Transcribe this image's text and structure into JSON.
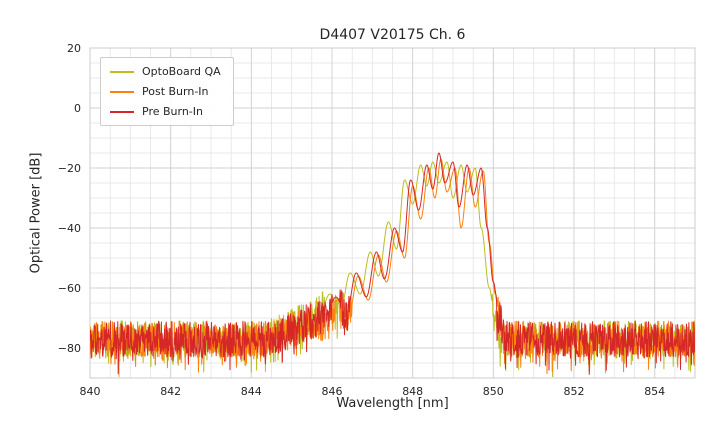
{
  "chart_data": {
    "type": "line",
    "title": "D4407 V20175 Ch. 6",
    "xlabel": "Wavelength [nm]",
    "ylabel": "Optical Power [dB]",
    "xlim": [
      840,
      855
    ],
    "ylim": [
      -90,
      20
    ],
    "xticks": [
      840,
      842,
      844,
      846,
      848,
      850,
      852,
      854
    ],
    "yticks": [
      20,
      0,
      -20,
      -40,
      -60,
      -80
    ],
    "grid": {
      "on": true,
      "minor_x_step": 0.5,
      "minor_y_step": 5
    },
    "legend_position": "upper left",
    "noise": {
      "floor": -77,
      "threshold": -65,
      "amplitude": 6,
      "spike": 7,
      "spike_prob": 0.18
    },
    "series": [
      {
        "name": "OptoBoard QA",
        "color": "#bcbd22",
        "points": [
          [
            840,
            -77
          ],
          [
            844.3,
            -77
          ],
          [
            844.8,
            -74
          ],
          [
            845.3,
            -71
          ],
          [
            845.7,
            -68
          ],
          [
            845.95,
            -62
          ],
          [
            846.2,
            -68
          ],
          [
            846.45,
            -55
          ],
          [
            846.7,
            -62
          ],
          [
            846.95,
            -48
          ],
          [
            847.15,
            -56
          ],
          [
            847.4,
            -38
          ],
          [
            847.6,
            -47
          ],
          [
            847.8,
            -24
          ],
          [
            848.0,
            -32
          ],
          [
            848.2,
            -19
          ],
          [
            848.35,
            -26
          ],
          [
            848.5,
            -18
          ],
          [
            848.65,
            -25
          ],
          [
            848.85,
            -18
          ],
          [
            849.0,
            -30
          ],
          [
            849.2,
            -19
          ],
          [
            849.35,
            -28
          ],
          [
            849.55,
            -20
          ],
          [
            849.7,
            -40
          ],
          [
            849.9,
            -60
          ],
          [
            850.05,
            -72
          ],
          [
            850.2,
            -77
          ],
          [
            855,
            -77
          ]
        ]
      },
      {
        "name": "Post Burn-In",
        "color": "#ff7f0e",
        "points": [
          [
            840,
            -77
          ],
          [
            844.5,
            -77
          ],
          [
            845.0,
            -74
          ],
          [
            845.5,
            -71
          ],
          [
            845.85,
            -69
          ],
          [
            846.15,
            -64
          ],
          [
            846.4,
            -70
          ],
          [
            846.65,
            -56
          ],
          [
            846.9,
            -64
          ],
          [
            847.15,
            -49
          ],
          [
            847.35,
            -58
          ],
          [
            847.6,
            -41
          ],
          [
            847.8,
            -50
          ],
          [
            848.0,
            -26
          ],
          [
            848.2,
            -37
          ],
          [
            848.4,
            -20
          ],
          [
            848.55,
            -30
          ],
          [
            848.7,
            -17
          ],
          [
            848.85,
            -28
          ],
          [
            849.05,
            -20
          ],
          [
            849.2,
            -40
          ],
          [
            849.4,
            -20
          ],
          [
            849.55,
            -33
          ],
          [
            849.75,
            -21
          ],
          [
            849.9,
            -45
          ],
          [
            850.05,
            -62
          ],
          [
            850.2,
            -72
          ],
          [
            850.35,
            -77
          ],
          [
            855,
            -77
          ]
        ]
      },
      {
        "name": "Pre Burn-In",
        "color": "#d62728",
        "points": [
          [
            840,
            -77
          ],
          [
            844.5,
            -77
          ],
          [
            845.0,
            -74
          ],
          [
            845.5,
            -71
          ],
          [
            845.85,
            -69
          ],
          [
            846.1,
            -63
          ],
          [
            846.35,
            -69
          ],
          [
            846.6,
            -55
          ],
          [
            846.85,
            -63
          ],
          [
            847.1,
            -48
          ],
          [
            847.3,
            -57
          ],
          [
            847.55,
            -40
          ],
          [
            847.75,
            -48
          ],
          [
            847.95,
            -24
          ],
          [
            848.15,
            -34
          ],
          [
            848.35,
            -19
          ],
          [
            848.5,
            -27
          ],
          [
            848.65,
            -15
          ],
          [
            848.8,
            -25
          ],
          [
            849.0,
            -18
          ],
          [
            849.15,
            -33
          ],
          [
            849.35,
            -19
          ],
          [
            849.5,
            -29
          ],
          [
            849.7,
            -20
          ],
          [
            849.85,
            -40
          ],
          [
            850.0,
            -58
          ],
          [
            850.15,
            -70
          ],
          [
            850.3,
            -77
          ],
          [
            855,
            -77
          ]
        ]
      }
    ]
  }
}
